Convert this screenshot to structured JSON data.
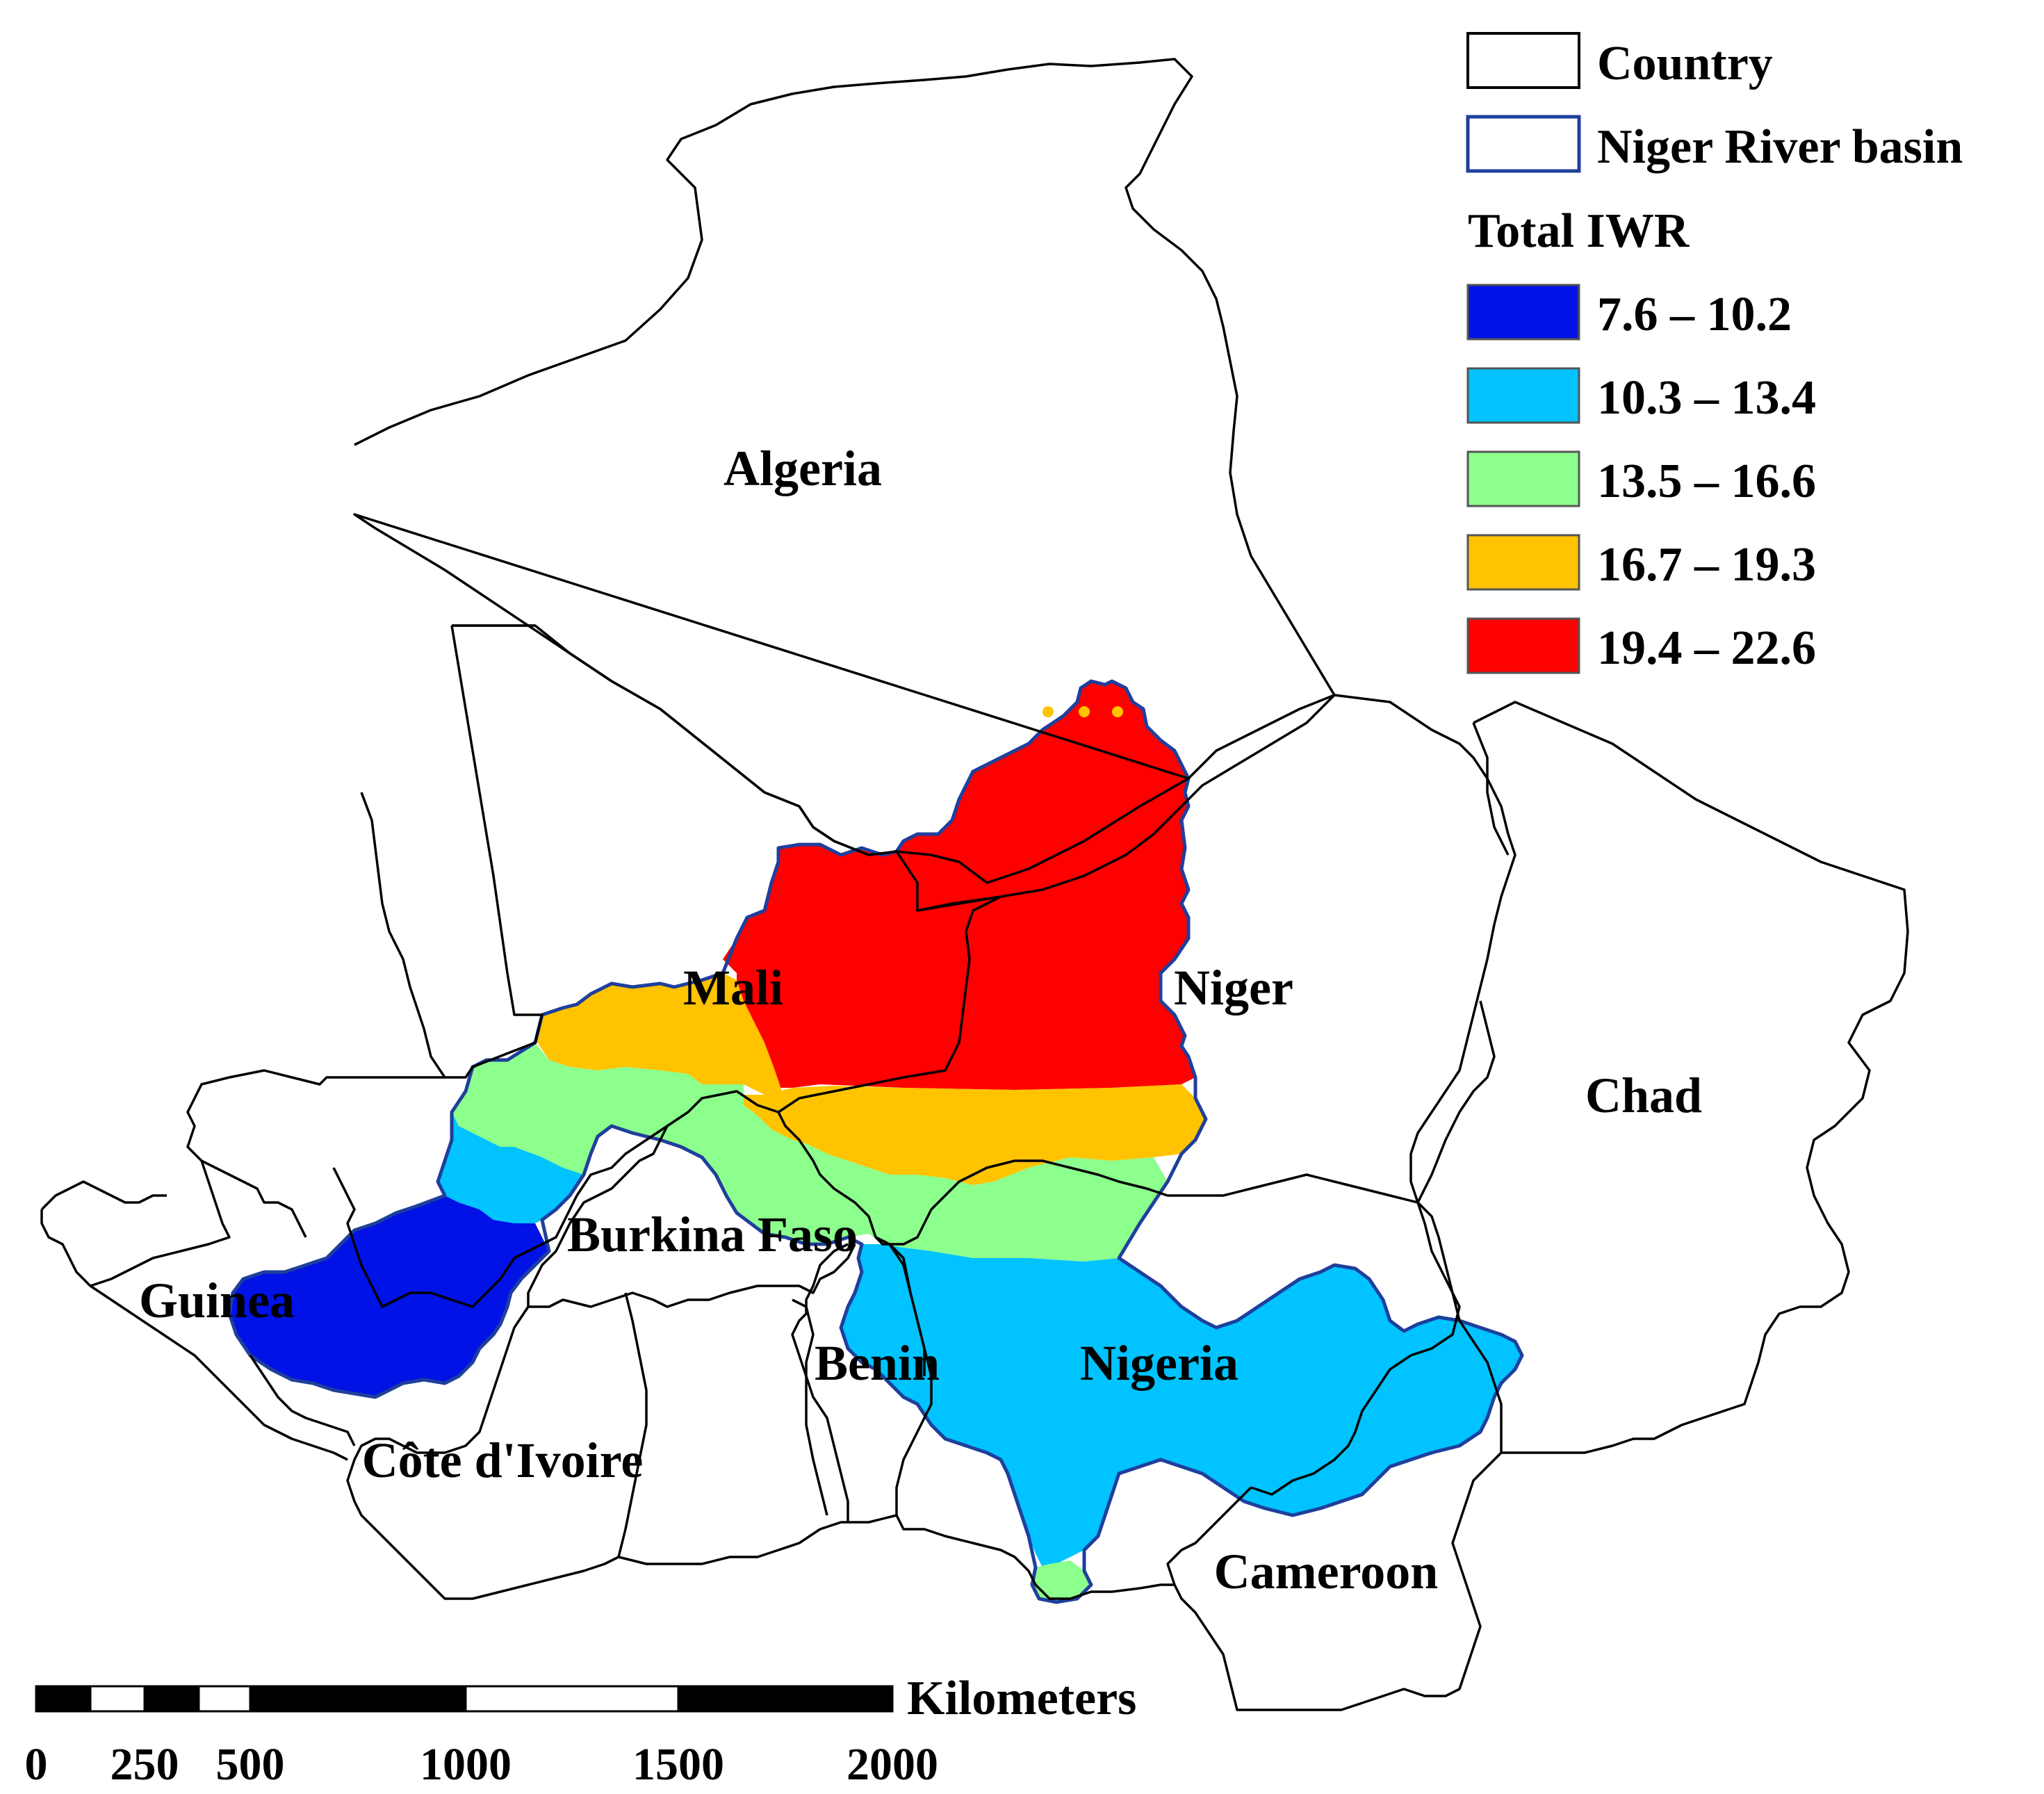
{
  "legend": {
    "country_label": "Country",
    "basin_label": "Niger River basin",
    "title": "Total IWR",
    "classes": [
      {
        "range": "7.6 – 10.2",
        "color": "#0012e6"
      },
      {
        "range": "10.3 – 13.4",
        "color": "#00c3ff"
      },
      {
        "range": "13.5 – 16.6",
        "color": "#8cff8c"
      },
      {
        "range": "16.7 – 19.3",
        "color": "#ffc300"
      },
      {
        "range": "19.4 – 22.6",
        "color": "#ff0000"
      }
    ]
  },
  "countries": {
    "algeria": "Algeria",
    "mali": "Mali",
    "niger": "Niger",
    "chad": "Chad",
    "burkina": "Burkina Faso",
    "guinea": "Guinea",
    "benin": "Benin",
    "nigeria": "Nigeria",
    "cote": "Côte d'Ivoire",
    "cameroon": "Cameroon"
  },
  "scale": {
    "unit": "Kilometers",
    "ticks": [
      "0",
      "250",
      "500",
      "1000",
      "1500",
      "2000"
    ]
  }
}
